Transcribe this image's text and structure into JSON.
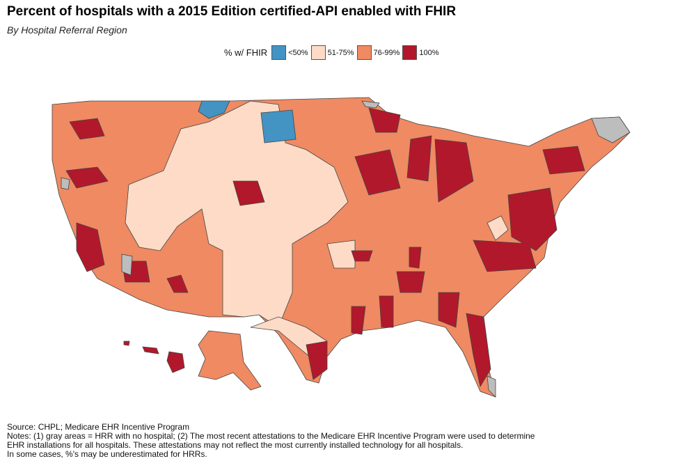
{
  "title": "Percent of hospitals with a 2015 Edition certified-API enabled with FHIR",
  "subtitle": "By Hospital Referral Region",
  "legend": {
    "title": "% w/ FHIR",
    "items": [
      {
        "label": "<50%",
        "color": "#4393c3"
      },
      {
        "label": "51-75%",
        "color": "#fddbc7"
      },
      {
        "label": "76-99%",
        "color": "#ef8a62"
      },
      {
        "label": "100%",
        "color": "#b2182b"
      }
    ],
    "no_data_color": "#bdbdbd"
  },
  "notes": {
    "source": "Source: CHPL; Medicare EHR Incentive Program",
    "line1": "Notes: (1) gray areas = HRR with no hospital; (2) The most recent attestations to the Medicare EHR Incentive Program were used to determine",
    "line2": "EHR installations for all hospitals. These attestations may not reflect the most currently installed technology for all hospitals.",
    "line3": "In some cases, %'s may be underestimated for HRRs."
  }
}
